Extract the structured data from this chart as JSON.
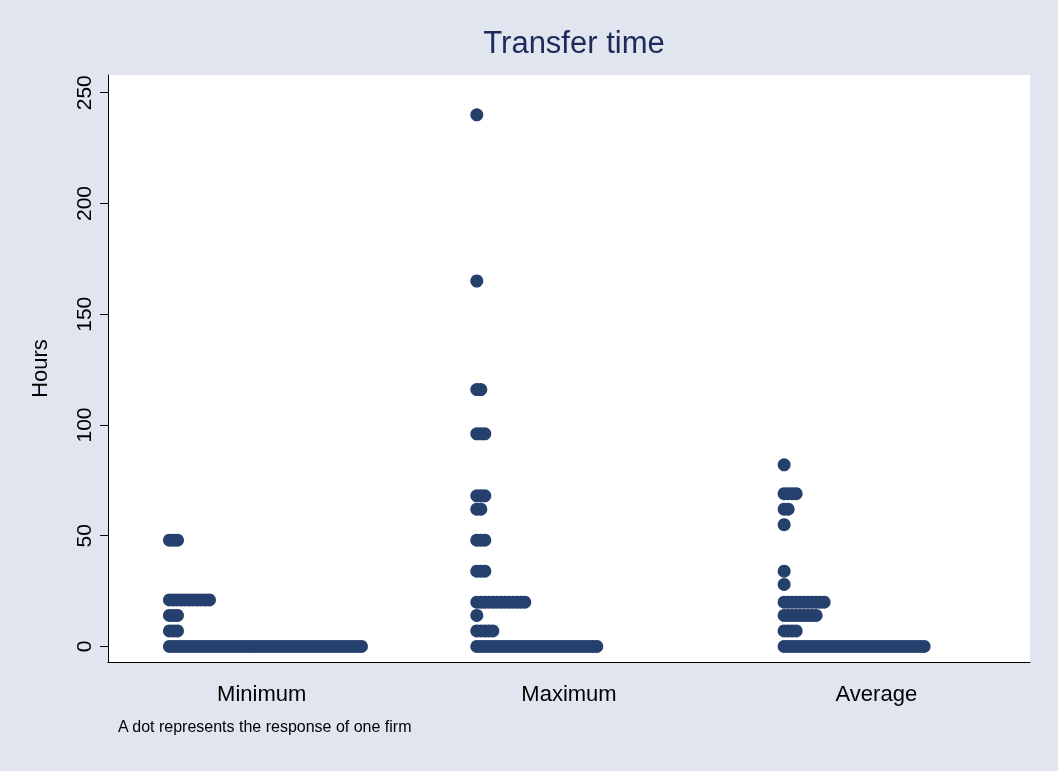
{
  "chart_data": {
    "type": "scatter",
    "title": "Transfer time",
    "ylabel": "Hours",
    "categories": [
      "Minimum",
      "Maximum",
      "Average"
    ],
    "ylim": [
      -7,
      258
    ],
    "yticks": [
      0,
      50,
      100,
      150,
      200,
      250
    ],
    "marker": "circle",
    "annotations": [
      "A dot represents the response of one firm"
    ],
    "series": [
      {
        "color": "#26406e",
        "x": [
          "Minimum",
          "Minimum",
          "Minimum",
          "Minimum",
          "Minimum",
          "Minimum",
          "Minimum",
          "Minimum",
          "Minimum",
          "Minimum",
          "Minimum",
          "Minimum",
          "Minimum",
          "Minimum",
          "Minimum",
          "Minimum",
          "Minimum",
          "Minimum",
          "Minimum",
          "Minimum",
          "Minimum",
          "Minimum",
          "Minimum",
          "Minimum",
          "Minimum",
          "Minimum",
          "Minimum",
          "Minimum",
          "Minimum",
          "Minimum",
          "Minimum",
          "Minimum",
          "Minimum",
          "Minimum",
          "Minimum",
          "Minimum",
          "Minimum",
          "Minimum",
          "Minimum",
          "Minimum",
          "Minimum",
          "Minimum",
          "Minimum",
          "Minimum",
          "Minimum",
          "Minimum",
          "Minimum",
          "Minimum",
          "Minimum",
          "Minimum",
          "Minimum",
          "Minimum",
          "Minimum",
          "Minimum",
          "Minimum",
          "Minimum",
          "Minimum",
          "Minimum",
          "Minimum",
          "Minimum",
          "Minimum",
          "Minimum",
          "Minimum",
          "Minimum",
          "Minimum",
          "Minimum",
          "Minimum",
          "Minimum",
          "Minimum"
        ],
        "values": [
          48,
          48,
          48,
          21,
          21,
          21,
          21,
          21,
          21,
          21,
          21,
          21,
          21,
          21,
          14,
          14,
          14,
          7,
          7,
          7,
          0,
          0,
          0,
          0,
          0,
          0,
          0,
          0,
          0,
          0,
          0,
          0,
          0,
          0,
          0,
          0,
          0,
          0,
          0,
          0,
          0,
          0,
          0,
          0,
          0,
          0,
          0,
          0,
          0,
          0,
          0,
          0,
          0,
          0,
          0,
          0,
          0,
          0,
          0,
          0,
          0,
          0,
          0,
          0,
          0,
          0,
          0,
          0,
          0
        ]
      },
      {
        "color": "#26406e",
        "x": [
          "Maximum",
          "Maximum",
          "Maximum",
          "Maximum",
          "Maximum",
          "Maximum",
          "Maximum",
          "Maximum",
          "Maximum",
          "Maximum",
          "Maximum",
          "Maximum",
          "Maximum",
          "Maximum",
          "Maximum",
          "Maximum",
          "Maximum",
          "Maximum",
          "Maximum",
          "Maximum",
          "Maximum",
          "Maximum",
          "Maximum",
          "Maximum",
          "Maximum",
          "Maximum",
          "Maximum",
          "Maximum",
          "Maximum",
          "Maximum",
          "Maximum",
          "Maximum",
          "Maximum",
          "Maximum",
          "Maximum",
          "Maximum",
          "Maximum",
          "Maximum",
          "Maximum",
          "Maximum",
          "Maximum",
          "Maximum",
          "Maximum",
          "Maximum",
          "Maximum",
          "Maximum",
          "Maximum",
          "Maximum",
          "Maximum",
          "Maximum",
          "Maximum",
          "Maximum",
          "Maximum",
          "Maximum",
          "Maximum",
          "Maximum",
          "Maximum",
          "Maximum",
          "Maximum",
          "Maximum",
          "Maximum",
          "Maximum",
          "Maximum",
          "Maximum",
          "Maximum",
          "Maximum",
          "Maximum",
          "Maximum"
        ],
        "values": [
          240,
          165,
          116,
          116,
          96,
          96,
          96,
          68,
          68,
          68,
          62,
          62,
          48,
          48,
          48,
          34,
          34,
          34,
          20,
          20,
          20,
          20,
          20,
          20,
          20,
          20,
          20,
          20,
          20,
          20,
          20,
          14,
          7,
          7,
          7,
          7,
          7,
          0,
          0,
          0,
          0,
          0,
          0,
          0,
          0,
          0,
          0,
          0,
          0,
          0,
          0,
          0,
          0,
          0,
          0,
          0,
          0,
          0,
          0,
          0,
          0,
          0,
          0,
          0,
          0,
          0,
          0,
          0
        ]
      },
      {
        "color": "#26406e",
        "x": [
          "Average",
          "Average",
          "Average",
          "Average",
          "Average",
          "Average",
          "Average",
          "Average",
          "Average",
          "Average",
          "Average",
          "Average",
          "Average",
          "Average",
          "Average",
          "Average",
          "Average",
          "Average",
          "Average",
          "Average",
          "Average",
          "Average",
          "Average",
          "Average",
          "Average",
          "Average",
          "Average",
          "Average",
          "Average",
          "Average",
          "Average",
          "Average",
          "Average",
          "Average",
          "Average",
          "Average",
          "Average",
          "Average",
          "Average",
          "Average",
          "Average",
          "Average",
          "Average",
          "Average",
          "Average",
          "Average",
          "Average",
          "Average",
          "Average",
          "Average",
          "Average",
          "Average",
          "Average",
          "Average",
          "Average",
          "Average",
          "Average",
          "Average",
          "Average",
          "Average",
          "Average",
          "Average",
          "Average",
          "Average",
          "Average",
          "Average",
          "Average",
          "Average",
          "Average",
          "Average"
        ],
        "values": [
          82,
          69,
          69,
          69,
          69,
          62,
          62,
          55,
          34,
          28,
          20,
          20,
          20,
          20,
          20,
          20,
          20,
          20,
          20,
          20,
          20,
          14,
          14,
          14,
          14,
          14,
          14,
          14,
          14,
          14,
          7,
          7,
          7,
          7,
          0,
          0,
          0,
          0,
          0,
          0,
          0,
          0,
          0,
          0,
          0,
          0,
          0,
          0,
          0,
          0,
          0,
          0,
          0,
          0,
          0,
          0,
          0,
          0,
          0,
          0,
          0,
          0,
          0,
          0,
          0,
          0,
          0,
          0,
          0,
          0
        ]
      }
    ]
  }
}
